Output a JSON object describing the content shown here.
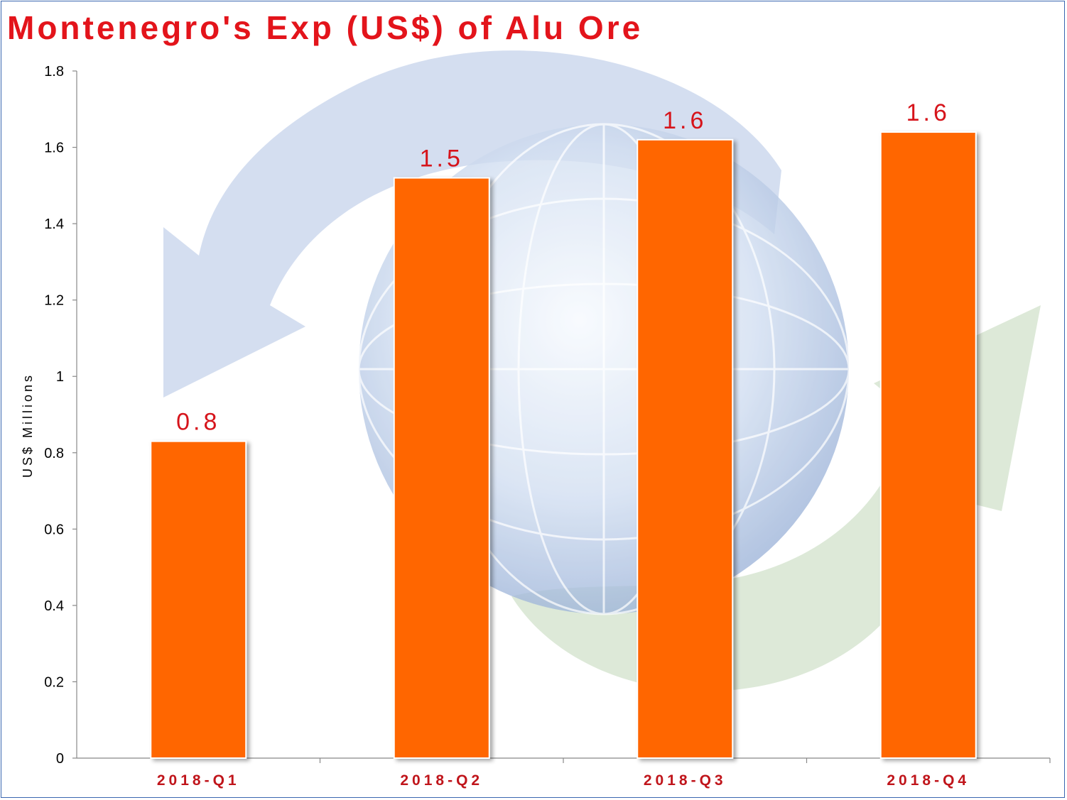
{
  "title": "Montenegro's Exp (US$) of Alu Ore",
  "colors": {
    "bar": "#ff6600",
    "title": "#e3141b",
    "category_label": "#c0151b",
    "data_label": "#d6141b",
    "frame": "#3a67b0"
  },
  "chart_data": {
    "type": "bar",
    "categories": [
      "2018-Q1",
      "2018-Q2",
      "2018-Q3",
      "2018-Q4"
    ],
    "values": [
      0.83,
      1.52,
      1.62,
      1.64
    ],
    "data_labels": [
      "0.8",
      "1.5",
      "1.6",
      "1.6"
    ],
    "ylabel": "US$ Millions",
    "ylim": [
      0,
      1.8
    ],
    "yticks": [
      "0",
      "0.2",
      "0.4",
      "0.6",
      "0.8",
      "1",
      "1.2",
      "1.4",
      "1.6",
      "1.8"
    ],
    "ytick_values": [
      0,
      0.2,
      0.4,
      0.6,
      0.8,
      1.0,
      1.2,
      1.4,
      1.6,
      1.8
    ],
    "grid": false,
    "legend": "none"
  }
}
